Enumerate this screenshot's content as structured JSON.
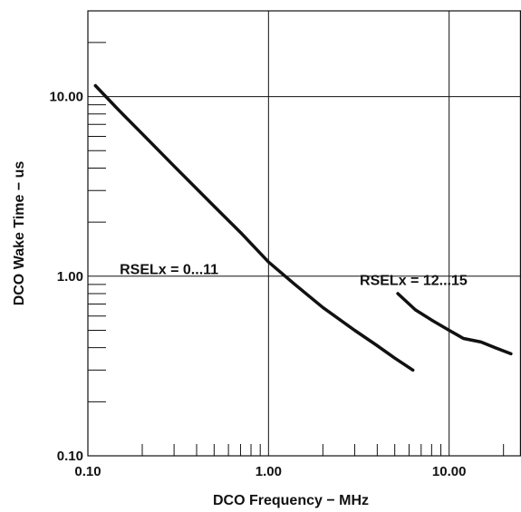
{
  "chart_data": {
    "type": "line",
    "title": "",
    "xlabel": "DCO Frequency − MHz",
    "ylabel": "DCO Wake Time − us",
    "x_scale": "log",
    "y_scale": "log",
    "xlim": [
      0.1,
      25
    ],
    "ylim": [
      0.1,
      30
    ],
    "x_tick_labels": [
      {
        "value": 0.1,
        "label": "0.10"
      },
      {
        "value": 1,
        "label": "1.00"
      },
      {
        "value": 10,
        "label": "10.00"
      }
    ],
    "y_tick_labels": [
      {
        "value": 0.1,
        "label": "0.10"
      },
      {
        "value": 1,
        "label": "1.00"
      },
      {
        "value": 10,
        "label": "10.00"
      }
    ],
    "grid": true,
    "legend": "none",
    "series": [
      {
        "x": [
          0.11,
          0.15,
          0.2,
          0.3,
          0.5,
          0.7,
          1.0,
          1.4,
          2.0,
          3.0,
          4.0,
          5.0,
          6.3
        ],
        "y": [
          11.5,
          8.3,
          6.2,
          4.1,
          2.45,
          1.75,
          1.2,
          0.9,
          0.67,
          0.5,
          0.41,
          0.35,
          0.3
        ]
      },
      {
        "x": [
          5.2,
          6.5,
          8.0,
          10.0,
          12.0,
          15.0,
          18.0,
          22.0
        ],
        "y": [
          0.8,
          0.65,
          0.57,
          0.5,
          0.45,
          0.43,
          0.4,
          0.37
        ]
      }
    ],
    "annotations": [
      {
        "text": "RSELx = 0...11",
        "x": 0.15,
        "y": 1.1
      },
      {
        "text": "RSELx = 12...15",
        "x": 3.2,
        "y": 0.96
      }
    ]
  }
}
